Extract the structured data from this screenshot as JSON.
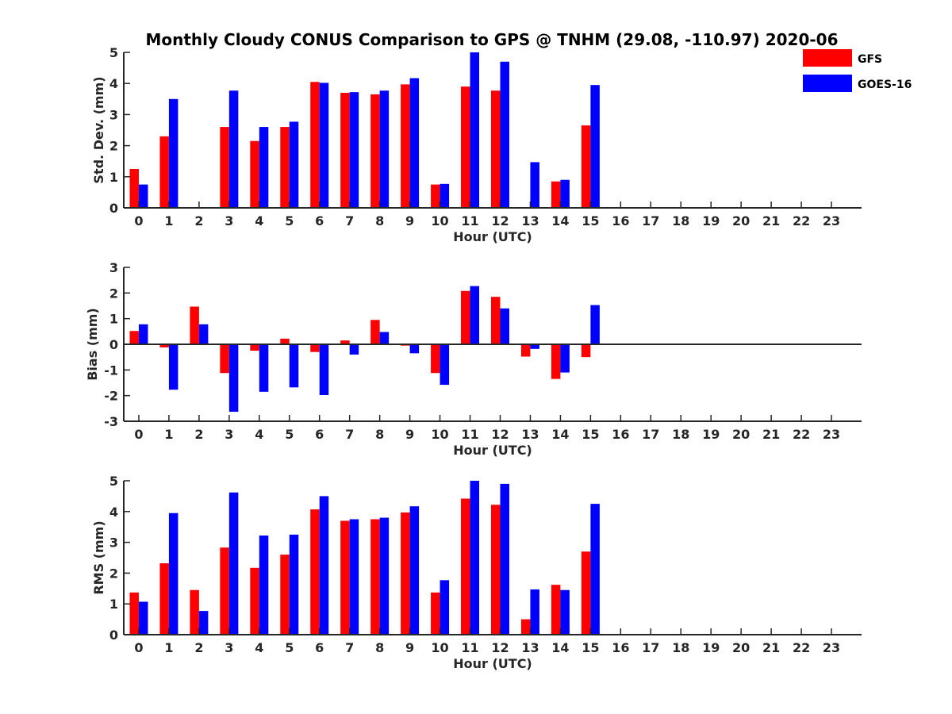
{
  "chart_data": [
    {
      "type": "bar",
      "title": "Monthly Cloudy CONUS Comparison to GPS @ TNHM (29.08, -110.97) 2020-06",
      "xlabel": "Hour (UTC)",
      "ylabel": "Std. Dev. (mm)",
      "categories": [
        "0",
        "1",
        "2",
        "3",
        "4",
        "5",
        "6",
        "7",
        "8",
        "9",
        "10",
        "11",
        "12",
        "13",
        "14",
        "15",
        "16",
        "17",
        "18",
        "19",
        "20",
        "21",
        "22",
        "23"
      ],
      "ylim": [
        0,
        5
      ],
      "yticks": [
        0,
        1,
        2,
        3,
        4,
        5
      ],
      "series": [
        {
          "name": "GFS",
          "color": "#ff0000",
          "values": [
            1.25,
            2.3,
            0,
            2.6,
            2.15,
            2.6,
            4.05,
            3.7,
            3.65,
            3.97,
            0.75,
            3.9,
            3.77,
            0,
            0.85,
            2.65,
            0,
            0,
            0,
            0,
            0,
            0,
            0,
            0
          ]
        },
        {
          "name": "GOES-16",
          "color": "#0000ff",
          "values": [
            0.75,
            3.5,
            0,
            3.77,
            2.6,
            2.77,
            4.02,
            3.72,
            3.77,
            4.17,
            0.77,
            5.0,
            4.7,
            1.47,
            0.9,
            3.95,
            0,
            0,
            0,
            0,
            0,
            0,
            0,
            0
          ]
        }
      ],
      "legend": {
        "position": "top-right",
        "entries": [
          "GFS",
          "GOES-16"
        ]
      }
    },
    {
      "type": "bar",
      "xlabel": "Hour (UTC)",
      "ylabel": "Bias (mm)",
      "categories": [
        "0",
        "1",
        "2",
        "3",
        "4",
        "5",
        "6",
        "7",
        "8",
        "9",
        "10",
        "11",
        "12",
        "13",
        "14",
        "15",
        "16",
        "17",
        "18",
        "19",
        "20",
        "21",
        "22",
        "23"
      ],
      "ylim": [
        -3,
        3
      ],
      "yticks": [
        -3,
        -2,
        -1,
        0,
        1,
        2,
        3
      ],
      "series": [
        {
          "name": "GFS",
          "color": "#ff0000",
          "values": [
            0.52,
            -0.12,
            1.47,
            -1.12,
            -0.25,
            0.22,
            -0.3,
            0.15,
            0.95,
            -0.05,
            -1.12,
            2.08,
            1.85,
            -0.48,
            -1.35,
            -0.5,
            0,
            0,
            0,
            0,
            0,
            0,
            0,
            0
          ]
        },
        {
          "name": "GOES-16",
          "color": "#0000ff",
          "values": [
            0.78,
            -1.77,
            0.78,
            -2.63,
            -1.85,
            -1.68,
            -1.98,
            -0.4,
            0.48,
            -0.35,
            -1.58,
            2.27,
            1.4,
            -0.18,
            -1.1,
            1.53,
            0,
            0,
            0,
            0,
            0,
            0,
            0,
            0
          ]
        }
      ]
    },
    {
      "type": "bar",
      "xlabel": "Hour (UTC)",
      "ylabel": "RMS (mm)",
      "categories": [
        "0",
        "1",
        "2",
        "3",
        "4",
        "5",
        "6",
        "7",
        "8",
        "9",
        "10",
        "11",
        "12",
        "13",
        "14",
        "15",
        "16",
        "17",
        "18",
        "19",
        "20",
        "21",
        "22",
        "23"
      ],
      "ylim": [
        0,
        5
      ],
      "yticks": [
        0,
        1,
        2,
        3,
        4,
        5
      ],
      "series": [
        {
          "name": "GFS",
          "color": "#ff0000",
          "values": [
            1.37,
            2.32,
            1.45,
            2.83,
            2.17,
            2.6,
            4.07,
            3.7,
            3.75,
            3.97,
            1.37,
            4.42,
            4.22,
            0.5,
            1.62,
            2.7,
            0,
            0,
            0,
            0,
            0,
            0,
            0,
            0
          ]
        },
        {
          "name": "GOES-16",
          "color": "#0000ff",
          "values": [
            1.07,
            3.95,
            0.77,
            4.62,
            3.22,
            3.25,
            4.5,
            3.75,
            3.8,
            4.17,
            1.77,
            5.0,
            4.9,
            1.47,
            1.45,
            4.25,
            0,
            0,
            0,
            0,
            0,
            0,
            0,
            0
          ]
        }
      ]
    }
  ]
}
